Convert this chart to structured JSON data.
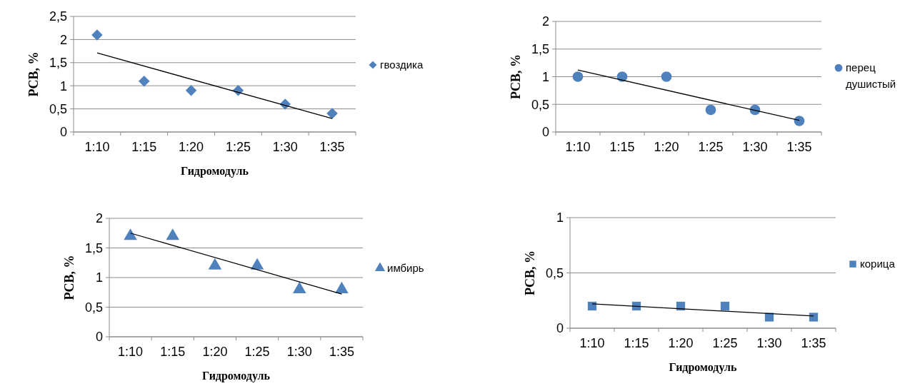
{
  "chart_data": [
    {
      "type": "scatter",
      "ylabel": "РСВ, %",
      "xlabel": "Гидромодуль",
      "categories": [
        "1:10",
        "1:15",
        "1:20",
        "1:25",
        "1:30",
        "1:35"
      ],
      "ylim": [
        0,
        2.5
      ],
      "yticks": [
        0,
        {
          "value": 0.5,
          "label": "0,5"
        },
        1,
        {
          "value": 1.5,
          "label": "1,5"
        },
        2,
        {
          "value": 2.5,
          "label": "2,5"
        }
      ],
      "grid": "y",
      "legend": "right",
      "series": [
        {
          "name": "гвоздика",
          "color": "#4f81bd",
          "marker": "diamond",
          "values": [
            2.1,
            1.1,
            0.9,
            0.9,
            0.6,
            0.4
          ]
        },
        {
          "type": "line",
          "color": "#000000",
          "x": [
            "1:10",
            "1:35"
          ],
          "values": [
            1.71,
            0.29
          ]
        }
      ]
    },
    {
      "type": "scatter",
      "ylabel": "РСВ, %",
      "categories": [
        "1:10",
        "1:15",
        "1:20",
        "1:25",
        "1:30",
        "1:35"
      ],
      "ylim": [
        0,
        2
      ],
      "yticks": [
        0,
        {
          "value": 0.5,
          "label": "0,5"
        },
        1,
        {
          "value": 1.5,
          "label": "1,5"
        },
        2
      ],
      "grid": "y",
      "legend": "right",
      "series": [
        {
          "name": "перец душистый",
          "color": "#4f81bd",
          "marker": "circle",
          "values": [
            1,
            1,
            1,
            0.4,
            0.4,
            0.2
          ]
        },
        {
          "type": "line",
          "color": "#000000",
          "x": [
            "1:10",
            "1:35"
          ],
          "values": [
            1.12,
            0.21
          ]
        }
      ]
    },
    {
      "type": "scatter",
      "ylabel": "РСВ, %",
      "xlabel": "Гидромодуль",
      "categories": [
        "1:10",
        "1:15",
        "1:20",
        "1:25",
        "1:30",
        "1:35"
      ],
      "ylim": [
        0,
        2
      ],
      "yticks": [
        0,
        {
          "value": 0.5,
          "label": "0,5"
        },
        1,
        {
          "value": 1.5,
          "label": "1,5"
        },
        2
      ],
      "grid": "y",
      "legend": "right",
      "series": [
        {
          "name": "имбирь",
          "color": "#4f81bd",
          "marker": "triangle",
          "values": [
            1.7,
            1.7,
            1.2,
            1.2,
            0.8,
            0.8
          ]
        },
        {
          "type": "line",
          "color": "#000000",
          "x": [
            "1:10",
            "1:35"
          ],
          "values": [
            1.75,
            0.72
          ]
        }
      ]
    },
    {
      "type": "scatter",
      "ylabel": "РСВ, %",
      "xlabel": "Гидромодуль",
      "categories": [
        "1:10",
        "1:15",
        "1:20",
        "1:25",
        "1:30",
        "1:35"
      ],
      "ylim": [
        0,
        1
      ],
      "yticks": [
        0,
        {
          "value": 0.5,
          "label": "0,5"
        },
        1
      ],
      "grid": "y",
      "legend": "right",
      "series": [
        {
          "name": "корица",
          "color": "#4f81bd",
          "marker": "square",
          "values": [
            0.2,
            0.2,
            0.2,
            0.2,
            0.1,
            0.1
          ]
        },
        {
          "type": "line",
          "color": "#000000",
          "x": [
            "1:10",
            "1:35"
          ],
          "values": [
            0.22,
            0.11
          ]
        }
      ]
    }
  ]
}
